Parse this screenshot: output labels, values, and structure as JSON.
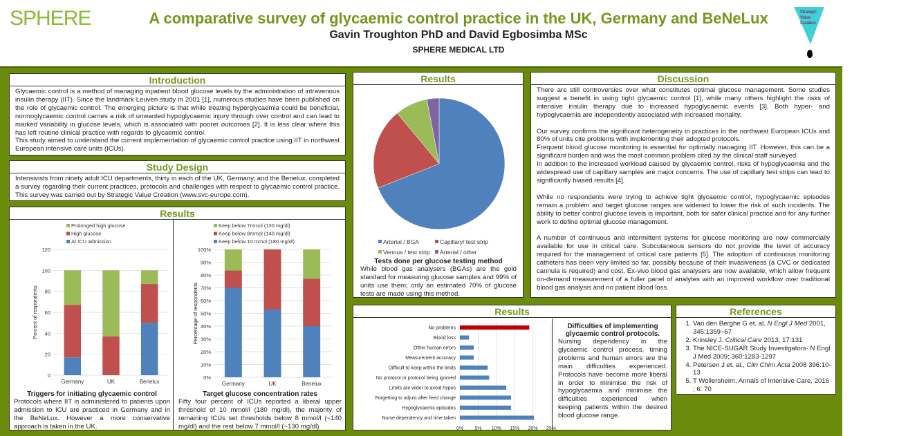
{
  "header": {
    "logo": "SPHERE",
    "title": "A comparative survey of glycaemic control practice in the UK, Germany and BeNeLux",
    "authors": "Gavin Troughton PhD and David Egbosimba MSc",
    "company": "SPHERE MEDICAL LTD",
    "svc_logo": [
      "Strategic",
      "Value",
      "Creation"
    ]
  },
  "intro": {
    "heading": "Introduction",
    "p1": "Glycaemic control is a method of managing inpatient blood glucose levels by the administration of intravenous insulin therapy (IIT). Since the landmark Leuven study in 2001 [1], numerous studies have been published on the role of glycaemic control. The emerging picture is that while treating hyperglycaemia could be beneficial, normoglycaemic control carries a risk of unwanted hypoglycaemic injury through over control and can lead to marked variability in glucose levels, which is associated with poorer outcomes [2]. It is less clear where this has left routine clinical practice with regards to glycaemic control.",
    "p2": "This study aimed to understand the current implementation of glycaemic control practice using IIT in northwest European intensive care units (ICUs)."
  },
  "design": {
    "heading": "Study Design",
    "text": "Intensivists from ninety adult ICU departments, thirty in each of the UK, Germany, and the Benelux, completed a survey regarding their current practices, protocols and challenges with respect to glycaemic control practice. This survey was carried out by Strategic Value Creation (www.svc-europe.com)."
  },
  "results_left": {
    "heading": "Results",
    "triggers": {
      "caption_title": "Triggers for initiating glycaemic control",
      "caption": "Protocols where IIT is administered to patients upon admission to ICU are practiced in Germany and in the BeNeLux. However a more conservative approach is taken in the UK."
    },
    "targets": {
      "caption_title": "Target glucose concentration rates",
      "caption": "Fifty four percent of ICUs reported a liberal upper threshold of 10 mmol/l (180 mg/dl), the majority of remaining ICUs set thresholds below 8 mmol/l (~140 mg/dl) and the rest below 7 mmol/l (~130 mg/dl)."
    }
  },
  "results_pie": {
    "heading": "Results",
    "caption_title": "Tests done per glucose testing method",
    "caption": "While blood gas analysers (BGAs) are the gold standard for measuring glucose samples and 99% of units use them; only an estimated 70% of glucose tests are made using this method."
  },
  "results_bar": {
    "heading": "Results",
    "caption_title": "Difficulties of implementing glycaemic control protocols.",
    "caption": "Nursing dependency in the glycaemic control process, timing problems and human errors are the main difficulties experienced. Protocols have become more liberal in order to minimise the risk of hypoglycaemia and minimise the difficulties experienced when keeping patients within the desired blood glucose range."
  },
  "discussion": {
    "heading": "Discussion",
    "p1": "There are still controversies over what constitutes optimal glucose management. Some studies suggest a benefit in using tight glycaemic control [1], while many others highlight the risks of intensive insulin therapy due to increased hypoglycaemic events [3]. Both hyper- and hypoglycaemia are independently associated with increased mortality.",
    "p2": "Our survey confirms the significant heterogeneity in practices in the northwest European ICUs and 80% of units cite problems with implementing their adopted protocols.",
    "p3": "Frequent blood glucose monitoring is essential for optimally managing IIT. However, this can be a significant burden and was the most common problem cited by the clinical staff surveyed.",
    "p4": "In addition to the increased workload caused by glycaemic control, risks of hypoglycaemia and the widespread use of capillary samples are major concerns. The use of capillary test strips can lead to significantly biased results [4].",
    "p5": "While no respondents were trying to achieve tight glycaemic control, hypoglycaemic episodes remain a problem and target glucose ranges are widened to lower the risk of such incidents. The ability to better control glucose levels is important, both for safer clinical practice and for any further work to define optimal glucose management.",
    "p6": "A number of continuous and intermittent systems for glucose monitoring are now commercially available for use in critical care. Subcutaneous sensors do not provide the level of accuracy required for the management of critical care patients [5]. The adoption of continuous monitoring catheters has been very limited so far, possibly because of their invasiveness (a CVC or dedicated cannula is required) and cost.  Ex-vivo blood gas analysers are now available, which allow frequent on-demand measurement of a fuller panel of analytes with an improved workflow over traditional blood gas analysis and no patient blood loss."
  },
  "references": {
    "heading": "References",
    "items": [
      {
        "a": "Van den Berghe G et. al. ",
        "i": "N Engl J Med",
        "b": " 2001, 345:1359–67"
      },
      {
        "a": "Krinsley J. ",
        "i": "Critical Care",
        "b": " 2013, 17:131"
      },
      {
        "a": "The NICE-SUGAR Study Investigators· N Engl J Med 2009; 360:1283-1297",
        "i": "",
        "b": ""
      },
      {
        "a": "Petersen J et. al., ",
        "i": "Clin Chim Acta",
        "b": " 2008 396:10-13"
      },
      {
        "a": " T Wollersheim, Annals of Intensive Care, 2016 ; 6:  70",
        "i": "",
        "b": ""
      }
    ]
  },
  "chart_data": [
    {
      "type": "bar",
      "stacked": true,
      "categories": [
        "Germany",
        "UK",
        "Benelux"
      ],
      "ylabel": "Percent of respondents",
      "ylim": [
        0,
        120
      ],
      "yticks": [
        "0",
        "20",
        "40",
        "60",
        "80",
        "100",
        "120"
      ],
      "legend": "top",
      "series": [
        {
          "name": "At ICU admission",
          "color": "#4f81bd",
          "values": [
            17,
            0,
            50
          ]
        },
        {
          "name": "High glucose",
          "color": "#c0504d",
          "values": [
            50,
            37,
            37
          ]
        },
        {
          "name": "Prolonged high glucose",
          "color": "#9bbb59",
          "values": [
            33,
            63,
            13
          ]
        }
      ]
    },
    {
      "type": "bar",
      "stacked": true,
      "categories": [
        "Germany",
        "UK",
        "Benelux"
      ],
      "ylabel": "Percentage of respondents",
      "ylim": [
        0,
        100
      ],
      "yticks": [
        "0%",
        "10%",
        "20%",
        "30%",
        "40%",
        "50%",
        "60%",
        "70%",
        "80%",
        "90%",
        "100%"
      ],
      "legend": "top",
      "series": [
        {
          "name": "Keep below 10 mmol (180 mg/dl)",
          "color": "#4f81bd",
          "values": [
            70,
            53,
            40
          ]
        },
        {
          "name": "Keep below 8mmol (140 mg/dl)",
          "color": "#c0504d",
          "values": [
            13.5,
            47,
            37
          ]
        },
        {
          "name": "Keep below 7mmol (130 mg/dl)",
          "color": "#9bbb59",
          "values": [
            16.5,
            0,
            23
          ]
        }
      ]
    },
    {
      "type": "pie",
      "legend": "bottom",
      "slices": [
        {
          "name": "Arterial / BGA",
          "value": 69,
          "color": "#4f81bd"
        },
        {
          "name": "Capillary/ test strip",
          "value": 20,
          "color": "#c0504d"
        },
        {
          "name": "Venous / test strip",
          "value": 8,
          "color": "#9bbb59"
        },
        {
          "name": "Arterial / other",
          "value": 3,
          "color": "#8064a2"
        }
      ]
    },
    {
      "type": "bar",
      "orientation": "horizontal",
      "xlim": [
        0,
        25
      ],
      "xticks": [
        "0%",
        "5%",
        "10%",
        "15%",
        "20%",
        "25%"
      ],
      "categories": [
        "No problems",
        "Blood loss",
        "Other human errors",
        "Measurement accuracy",
        "Difficult to keep within the limits",
        "No  protocol or protocol being ignored",
        "Limits are wider to avoid hypos",
        "Forgetting to adjust after feed change",
        "Hypoglycaemic episodes",
        "Nurse dependency and time taken"
      ],
      "values": [
        19,
        2.5,
        3.8,
        3.8,
        7.6,
        8,
        12.7,
        14,
        14,
        20.3
      ],
      "colors": [
        "#c00000",
        "#4f81bd",
        "#4f81bd",
        "#4f81bd",
        "#4f81bd",
        "#4f81bd",
        "#4f81bd",
        "#4f81bd",
        "#4f81bd",
        "#4f81bd"
      ]
    }
  ]
}
